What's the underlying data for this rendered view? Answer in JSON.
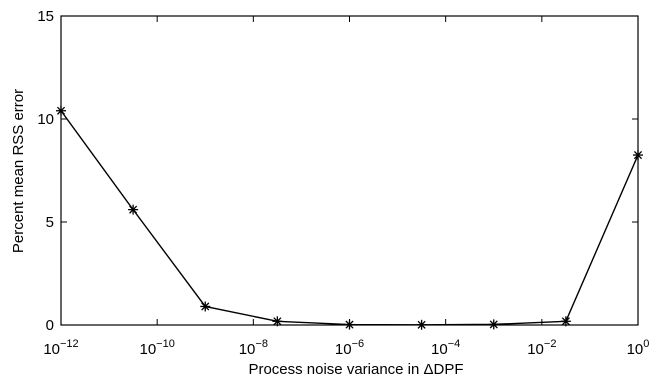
{
  "chart_data": {
    "type": "line",
    "title": "",
    "xlabel": "Process noise variance in ΔDPF",
    "ylabel": "Percent mean RSS error",
    "x_scale": "log",
    "xlim": [
      1e-12,
      1
    ],
    "ylim": [
      0,
      15
    ],
    "grid": false,
    "x_ticks": [
      {
        "value": 1e-12,
        "base": "10",
        "exp": "−12"
      },
      {
        "value": 1e-10,
        "base": "10",
        "exp": "−10"
      },
      {
        "value": 1e-08,
        "base": "10",
        "exp": "−8"
      },
      {
        "value": 1e-06,
        "base": "10",
        "exp": "−6"
      },
      {
        "value": 0.0001,
        "base": "10",
        "exp": "−4"
      },
      {
        "value": 0.01,
        "base": "10",
        "exp": "−2"
      },
      {
        "value": 1,
        "base": "10",
        "exp": "0"
      }
    ],
    "y_ticks": [
      {
        "value": 0,
        "label": "0"
      },
      {
        "value": 5,
        "label": "5"
      },
      {
        "value": 10,
        "label": "10"
      },
      {
        "value": 15,
        "label": "15"
      }
    ],
    "series": [
      {
        "marker": "asterisk",
        "color": "#000000",
        "x": [
          1e-12,
          3.16e-11,
          1e-09,
          3.16e-08,
          1e-06,
          3.16e-05,
          0.001,
          0.0316,
          1
        ],
        "y": [
          10.4,
          5.6,
          0.9,
          0.18,
          0.02,
          0.01,
          0.03,
          0.18,
          8.25
        ]
      }
    ]
  }
}
